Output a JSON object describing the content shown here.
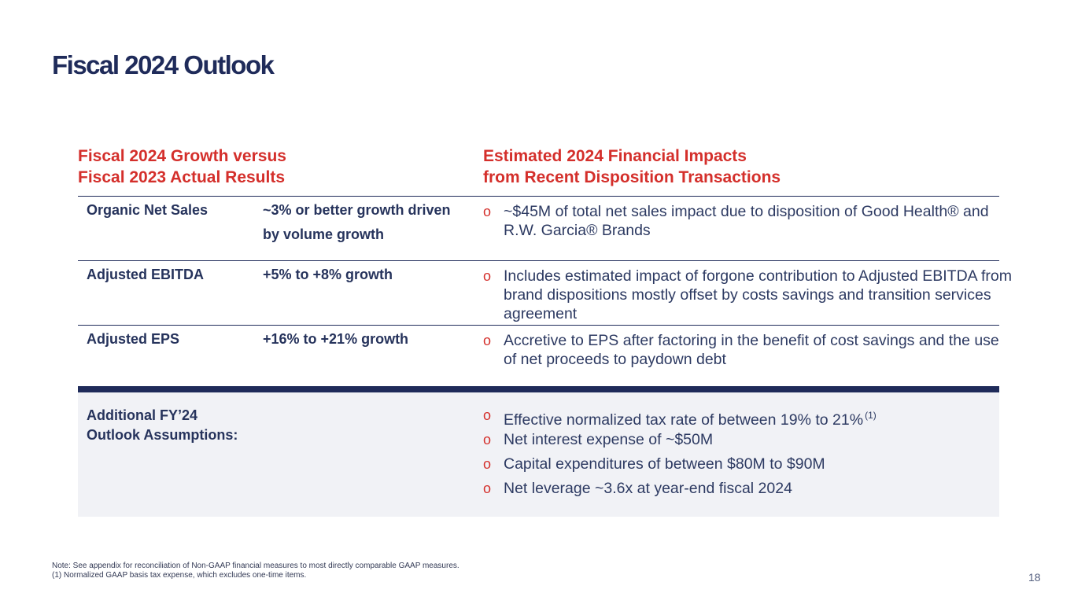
{
  "title": "Fiscal 2024 Outlook",
  "left_header": {
    "line1": "Fiscal 2024 Growth versus",
    "line2": "Fiscal 2023 Actual Results"
  },
  "right_header": {
    "line1": "Estimated 2024 Financial Impacts",
    "line2": "from Recent Disposition Transactions"
  },
  "bullet_symbol": "o",
  "rows": [
    {
      "metric": "Organic Net Sales",
      "guidance": "~3% or better growth driven by volume growth",
      "impact": "~$45M of total net sales impact due to disposition of Good Health® and R.W. Garcia® Brands"
    },
    {
      "metric": "Adjusted EBITDA",
      "guidance": "+5% to +8% growth",
      "impact": "Includes estimated impact of forgone contribution to Adjusted EBITDA from brand dispositions mostly offset by costs savings and transition services agreement"
    },
    {
      "metric": "Adjusted EPS",
      "guidance": "+16% to +21% growth",
      "impact": "Accretive to EPS after factoring in the benefit of cost savings and the use of net proceeds to paydown debt"
    }
  ],
  "assumptions": {
    "label": "Additional FY’24 Outlook Assumptions:",
    "items": [
      "Effective normalized tax rate of between 19% to 21%",
      "Net interest expense of ~$50M",
      "Capital expenditures of between $80M to $90M",
      "Net leverage ~3.6x at year-end fiscal 2024"
    ],
    "footnote_ref": "(1)"
  },
  "notes": {
    "line1": "Note: See appendix for reconciliation of Non-GAAP financial measures to most directly comparable GAAP measures.",
    "line2": "(1) Normalized GAAP basis tax expense, which excludes one-time items."
  },
  "page_number": "18",
  "colors": {
    "navy": "#1f2b5a",
    "red": "#d42f2b",
    "panel": "#f1f2f6"
  }
}
